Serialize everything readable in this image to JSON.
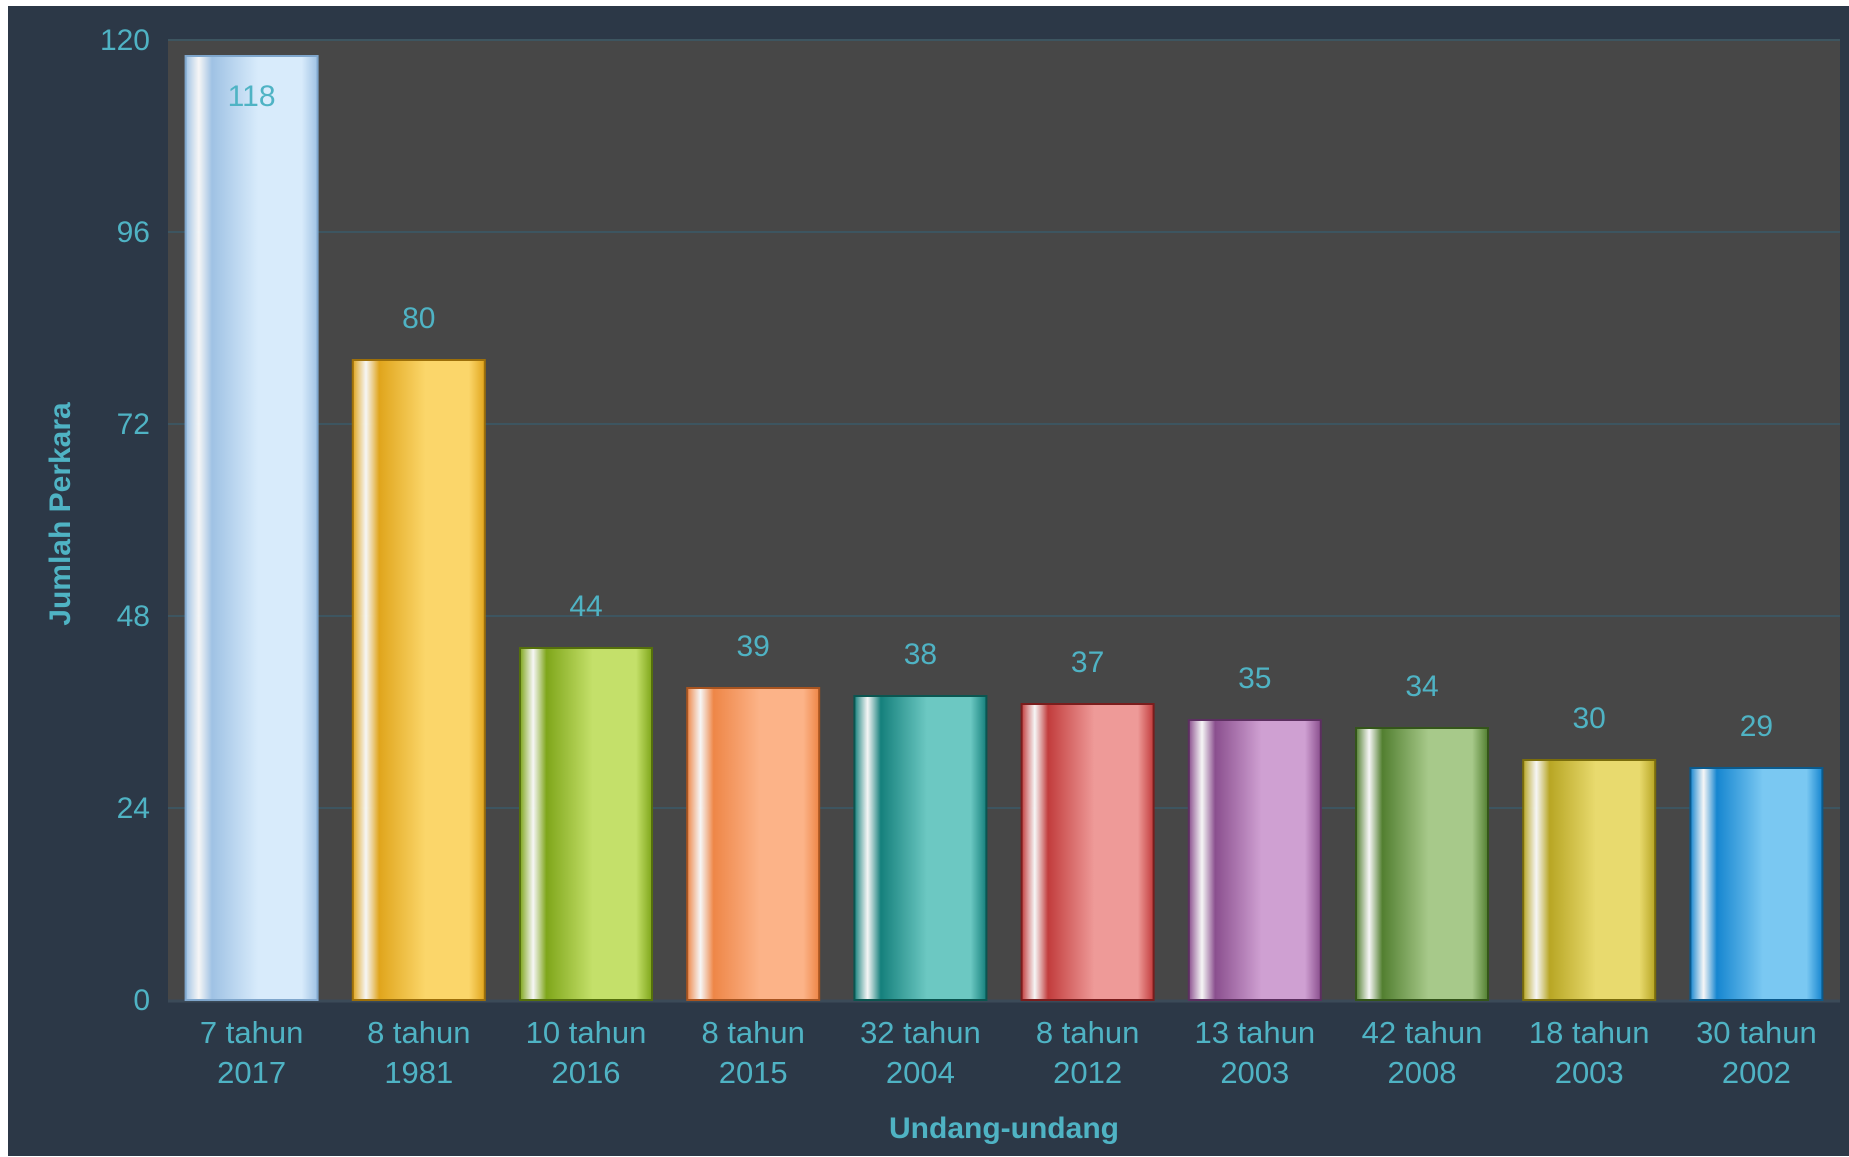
{
  "chart_data": {
    "type": "bar",
    "categories": [
      [
        "7 tahun",
        "2017"
      ],
      [
        "8 tahun",
        "1981"
      ],
      [
        "10 tahun",
        "2016"
      ],
      [
        "8 tahun",
        "2015"
      ],
      [
        "32 tahun",
        "2004"
      ],
      [
        "8 tahun",
        "2012"
      ],
      [
        "13 tahun",
        "2003"
      ],
      [
        "42 tahun",
        "2008"
      ],
      [
        "18 tahun",
        "2003"
      ],
      [
        "30 tahun",
        "2002"
      ]
    ],
    "values": [
      118,
      80,
      44,
      39,
      38,
      37,
      35,
      34,
      30,
      29
    ],
    "value_labels": [
      "118",
      "80",
      "44",
      "39",
      "38",
      "37",
      "35",
      "34",
      "30",
      "29"
    ],
    "xlabel": "Undang-undang",
    "ylabel": "Jumlah Perkara",
    "ylim": [
      0,
      120
    ],
    "yticks": [
      0,
      24,
      48,
      72,
      96,
      120
    ],
    "ytick_labels": [
      "0",
      "24",
      "48",
      "72",
      "96",
      "120"
    ],
    "grid": true,
    "legend": "none",
    "colors": {
      "background": "#2c3847",
      "plot_area": "#474747",
      "gridline": "#3d5560",
      "text": "#4fb3c4",
      "bars": [
        {
          "dark": "#9fc2e4",
          "light": "#d8ebfb",
          "edge": "#7fa6cc"
        },
        {
          "dark": "#e0a51c",
          "light": "#fbd66a",
          "edge": "#9c6f0a"
        },
        {
          "dark": "#7fa61a",
          "light": "#c4e06a",
          "edge": "#55700c"
        },
        {
          "dark": "#ee8647",
          "light": "#fcb388",
          "edge": "#a85420"
        },
        {
          "dark": "#15807c",
          "light": "#6cc8c2",
          "edge": "#0b5550"
        },
        {
          "dark": "#c23c3c",
          "light": "#ee9a98",
          "edge": "#7a1d1d"
        },
        {
          "dark": "#8a4f8e",
          "light": "#cfa0d2",
          "edge": "#5c2f60"
        },
        {
          "dark": "#527f30",
          "light": "#a7c98a",
          "edge": "#34551a"
        },
        {
          "dark": "#b8a624",
          "light": "#e8da6e",
          "edge": "#7a6d0c"
        },
        {
          "dark": "#1686d0",
          "light": "#7ac8f2",
          "edge": "#0b5a8c"
        }
      ]
    }
  }
}
